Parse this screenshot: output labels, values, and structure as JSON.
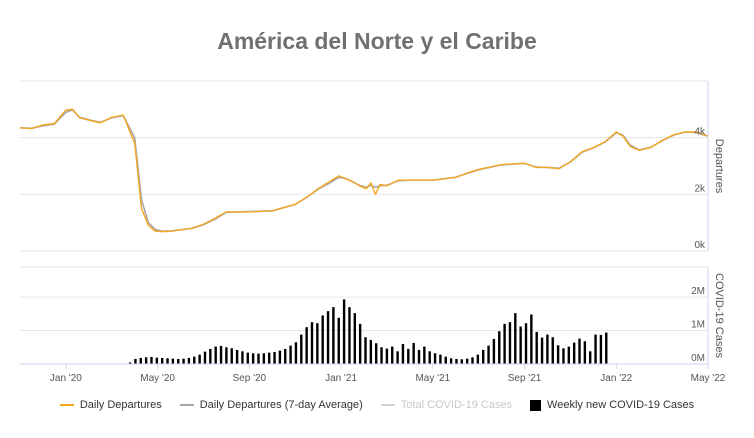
{
  "title": "América del Norte y el Caribe",
  "colors": {
    "daily": "#f5a623",
    "avg": "#a6a6a6",
    "total": "#d3d3d3",
    "weekly": "#000000",
    "grid": "#e6e6e6",
    "axis": "#ccd6eb"
  },
  "chart_data": [
    {
      "type": "line",
      "title": "América del Norte y el Caribe",
      "ylabel": "Departures",
      "x_ticks": [
        "Jan '20",
        "May '20",
        "Sep '20",
        "Jan '21",
        "May '21",
        "Sep '21",
        "Jan '22",
        "May '22"
      ],
      "y_ticks": [
        "0k",
        "2k",
        "4k"
      ],
      "ylim": [
        0,
        6000
      ],
      "x_unit": "month index (0 = Jan 2020)",
      "xlim": [
        -2.0,
        28.0
      ],
      "series": [
        {
          "name": "Daily Departures",
          "x": [
            -2.0,
            -1.5,
            -1.0,
            -0.5,
            0.0,
            0.3,
            0.6,
            1.0,
            1.5,
            2.0,
            2.5,
            3.0,
            3.3,
            3.6,
            3.9,
            4.2,
            4.6,
            5.0,
            5.5,
            6.0,
            6.5,
            7.0,
            7.5,
            8.0,
            9.0,
            10.0,
            10.5,
            11.0,
            11.5,
            11.9,
            12.2,
            12.5,
            12.8,
            13.1,
            13.3,
            13.5,
            13.7,
            14.0,
            14.5,
            15.0,
            16.0,
            17.0,
            17.5,
            18.0,
            19.0,
            20.0,
            20.5,
            21.0,
            21.5,
            22.0,
            22.5,
            23.0,
            23.5,
            24.0,
            24.3,
            24.6,
            25.0,
            25.5,
            26.0,
            26.5,
            27.0,
            27.5,
            28.0
          ],
          "values": [
            4350,
            4320,
            4450,
            4500,
            4980,
            5000,
            4700,
            4620,
            4520,
            4720,
            4800,
            3800,
            1500,
            900,
            700,
            680,
            700,
            750,
            800,
            950,
            1150,
            1380,
            1380,
            1380,
            1420,
            1650,
            1900,
            2200,
            2450,
            2650,
            2550,
            2450,
            2300,
            2200,
            2400,
            2000,
            2350,
            2300,
            2500,
            2500,
            2500,
            2600,
            2750,
            2880,
            3050,
            3100,
            2950,
            2950,
            2900,
            3150,
            3500,
            3650,
            3850,
            4200,
            4050,
            3700,
            3550,
            3650,
            3900,
            4100,
            4200,
            4200,
            4050
          ]
        },
        {
          "name": "Daily Departures (7-day Average)",
          "x": [
            -2.0,
            -1.5,
            -1.0,
            -0.5,
            0.0,
            0.3,
            0.6,
            1.0,
            1.5,
            2.0,
            2.5,
            3.0,
            3.3,
            3.6,
            3.9,
            4.2,
            4.6,
            5.0,
            5.5,
            6.0,
            6.5,
            7.0,
            7.5,
            8.0,
            9.0,
            10.0,
            10.5,
            11.0,
            11.5,
            11.9,
            12.2,
            12.5,
            12.8,
            13.1,
            13.3,
            13.5,
            13.7,
            14.0,
            14.5,
            15.0,
            16.0,
            17.0,
            17.5,
            18.0,
            19.0,
            20.0,
            20.5,
            21.0,
            21.5,
            22.0,
            22.5,
            23.0,
            23.5,
            24.0,
            24.3,
            24.6,
            25.0,
            25.5,
            26.0,
            26.5,
            27.0,
            27.5,
            28.0
          ],
          "values": [
            4350,
            4330,
            4420,
            4480,
            4900,
            4980,
            4720,
            4630,
            4540,
            4700,
            4780,
            4000,
            1800,
            1000,
            760,
            700,
            710,
            750,
            800,
            930,
            1120,
            1370,
            1380,
            1390,
            1420,
            1640,
            1890,
            2180,
            2400,
            2600,
            2560,
            2450,
            2320,
            2250,
            2320,
            2250,
            2300,
            2320,
            2480,
            2500,
            2500,
            2600,
            2740,
            2870,
            3040,
            3090,
            2960,
            2950,
            2920,
            3140,
            3480,
            3640,
            3840,
            4180,
            4080,
            3750,
            3570,
            3660,
            3890,
            4090,
            4200,
            4180,
            4060
          ]
        }
      ]
    },
    {
      "type": "bar",
      "ylabel": "COVID-19 Cases",
      "y_ticks": [
        "0M",
        "1M",
        "2M"
      ],
      "ylim": [
        0,
        2900000
      ],
      "series": [
        {
          "name": "Weekly new COVID-19 Cases",
          "values": [
            45000,
            150000,
            180000,
            200000,
            210000,
            190000,
            180000,
            170000,
            160000,
            150000,
            160000,
            180000,
            220000,
            280000,
            370000,
            450000,
            520000,
            540000,
            500000,
            470000,
            420000,
            380000,
            340000,
            320000,
            310000,
            320000,
            340000,
            360000,
            400000,
            450000,
            550000,
            650000,
            880000,
            1100000,
            1250000,
            1220000,
            1450000,
            1580000,
            1700000,
            1380000,
            1930000,
            1700000,
            1520000,
            1200000,
            800000,
            720000,
            620000,
            500000,
            460000,
            520000,
            380000,
            600000,
            450000,
            630000,
            420000,
            520000,
            380000,
            320000,
            280000,
            220000,
            170000,
            150000,
            140000,
            160000,
            200000,
            280000,
            420000,
            550000,
            750000,
            980000,
            1200000,
            1250000,
            1520000,
            1120000,
            1220000,
            1480000,
            960000,
            790000,
            880000,
            800000,
            560000,
            470000,
            520000,
            640000,
            760000,
            680000,
            380000,
            880000,
            870000,
            940000
          ]
        }
      ],
      "bar_x_start": 2.8,
      "bar_x_step": 0.2333
    }
  ],
  "legend": [
    {
      "label": "Daily Departures",
      "kind": "line",
      "color_key": "daily"
    },
    {
      "label": "Daily Departures (7-day Average)",
      "kind": "line",
      "color_key": "avg"
    },
    {
      "label": "Total COVID-19 Cases",
      "kind": "line",
      "color_key": "total"
    },
    {
      "label": "Weekly new COVID-19 Cases",
      "kind": "box",
      "color_key": "weekly"
    }
  ]
}
